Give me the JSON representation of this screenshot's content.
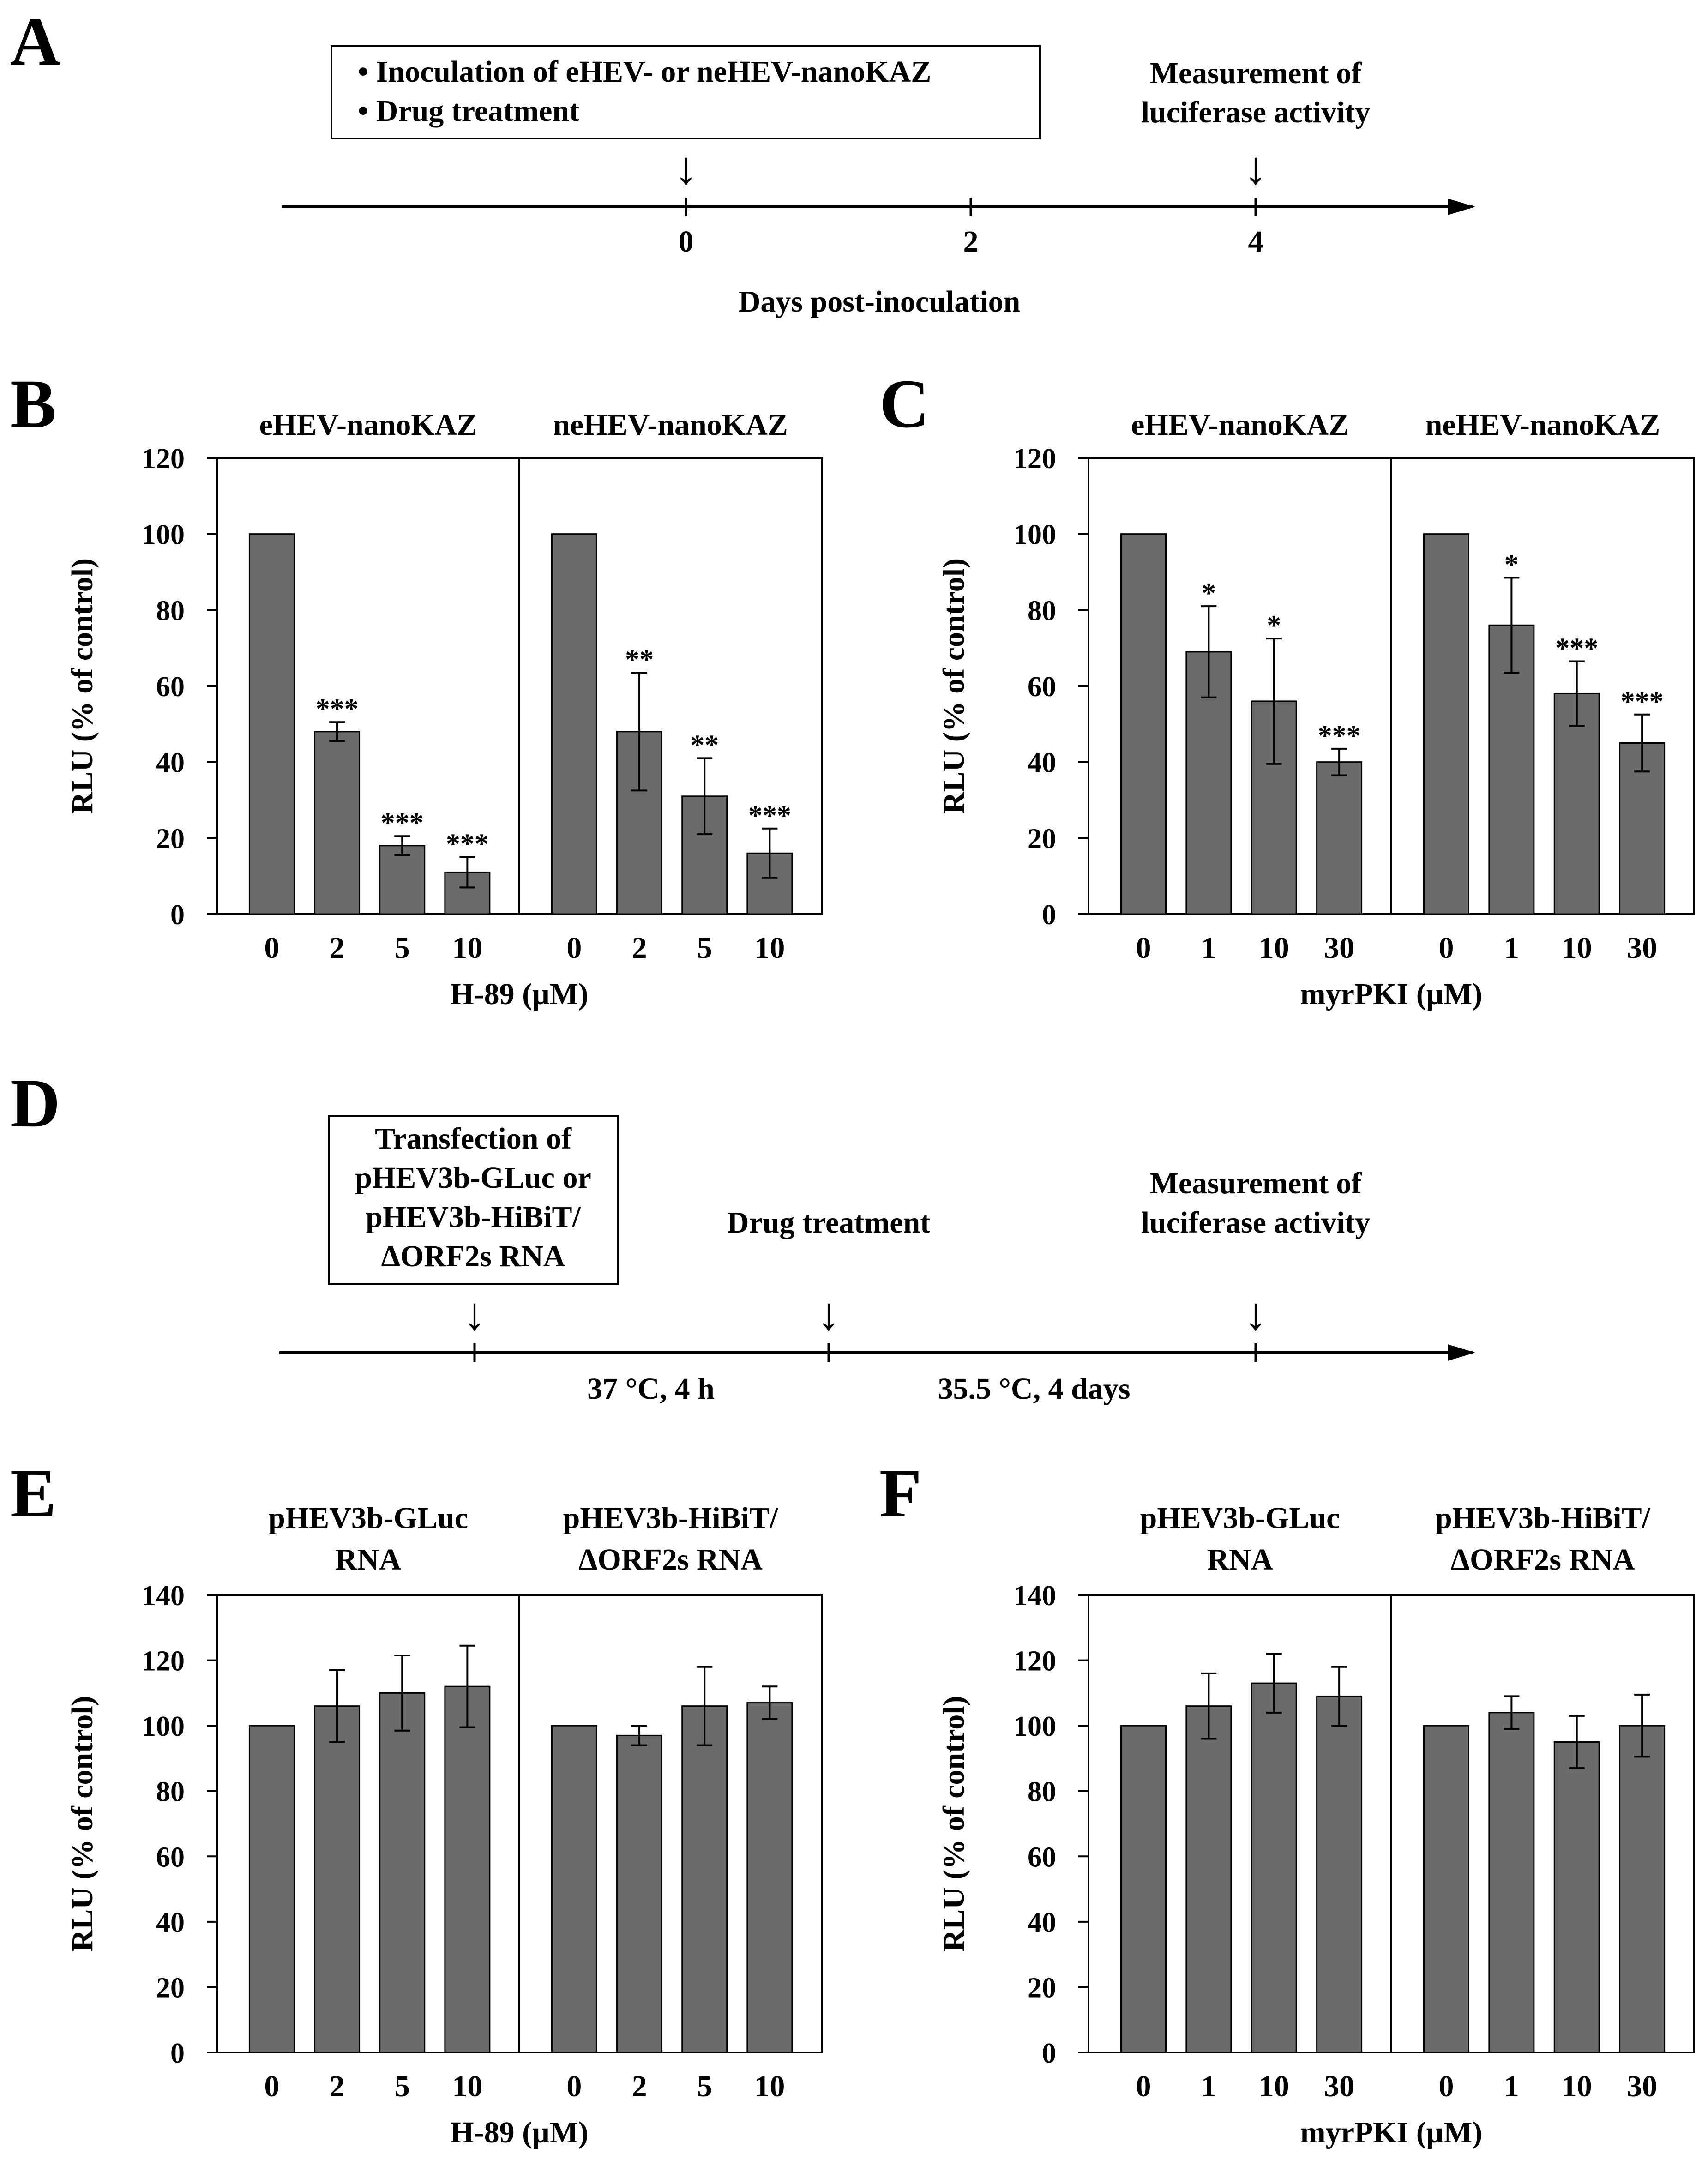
{
  "panel_labels": {
    "A": "A",
    "B": "B",
    "C": "C",
    "D": "D",
    "E": "E",
    "F": "F"
  },
  "colors": {
    "bar": "#6b6b6b",
    "ink": "#000000"
  },
  "timeline_a": {
    "box_line_1": "• Inoculation of eHEV- or neHEV-nanoKAZ",
    "box_line_2": "• Drug treatment",
    "measure_line_1": "Measurement of",
    "measure_line_2": "luciferase activity",
    "tick_labels": [
      "0",
      "2",
      "4"
    ],
    "axis_label": "Days post-inoculation",
    "arrow_glyph": "↓"
  },
  "timeline_d": {
    "box_lines": [
      "Transfection of",
      "pHEV3b-GLuc or",
      "pHEV3b-HiBiT/",
      "ΔORF2s RNA"
    ],
    "drug_label": "Drug treatment",
    "measure_line_1": "Measurement of",
    "measure_line_2": "luciferase activity",
    "segment_1_label": "37 °C, 4 h",
    "segment_2_label": "35.5 °C, 4 days",
    "arrow_glyph": "↓"
  },
  "chart_data": [
    {
      "id": "B",
      "type": "bar",
      "title": "",
      "ylabel": "RLU (% of control)",
      "xlabel": "H-89 (μM)",
      "ylim": [
        0,
        120
      ],
      "yticks": [
        0,
        20,
        40,
        60,
        80,
        100,
        120
      ],
      "groups": [
        {
          "name": "eHEV-nanoKAZ",
          "categories": [
            "0",
            "2",
            "5",
            "10"
          ],
          "values": [
            100,
            48,
            18,
            11
          ],
          "errors": [
            0,
            2.5,
            2.5,
            4
          ],
          "significance": [
            "",
            "***",
            "***",
            "***"
          ]
        },
        {
          "name": "neHEV-nanoKAZ",
          "categories": [
            "0",
            "2",
            "5",
            "10"
          ],
          "values": [
            100,
            48,
            31,
            16
          ],
          "errors": [
            0,
            15.5,
            10,
            6.5
          ],
          "significance": [
            "",
            "**",
            "**",
            "***"
          ]
        }
      ]
    },
    {
      "id": "C",
      "type": "bar",
      "title": "",
      "ylabel": "RLU (% of control)",
      "xlabel": "myrPKI (μM)",
      "ylim": [
        0,
        120
      ],
      "yticks": [
        0,
        20,
        40,
        60,
        80,
        100,
        120
      ],
      "groups": [
        {
          "name": "eHEV-nanoKAZ",
          "categories": [
            "0",
            "1",
            "10",
            "30"
          ],
          "values": [
            100,
            69,
            56,
            40
          ],
          "errors": [
            0,
            12,
            16.5,
            3.5
          ],
          "significance": [
            "",
            "*",
            "*",
            "***"
          ]
        },
        {
          "name": "neHEV-nanoKAZ",
          "categories": [
            "0",
            "1",
            "10",
            "30"
          ],
          "values": [
            100,
            76,
            58,
            45
          ],
          "errors": [
            0,
            12.5,
            8.5,
            7.5
          ],
          "significance": [
            "",
            "*",
            "***",
            "***"
          ]
        }
      ]
    },
    {
      "id": "E",
      "type": "bar",
      "title": "",
      "ylabel": "RLU (% of control)",
      "xlabel": "H-89 (μM)",
      "ylim": [
        0,
        140
      ],
      "yticks": [
        0,
        20,
        40,
        60,
        80,
        100,
        120,
        140
      ],
      "groups": [
        {
          "name_lines": [
            "pHEV3b-GLuc",
            "RNA"
          ],
          "categories": [
            "0",
            "2",
            "5",
            "10"
          ],
          "values": [
            100,
            106,
            110,
            112
          ],
          "errors": [
            0,
            11,
            11.5,
            12.5
          ],
          "significance": [
            "",
            "",
            "",
            ""
          ]
        },
        {
          "name_lines": [
            "pHEV3b-HiBiT/",
            "ΔORF2s RNA"
          ],
          "categories": [
            "0",
            "2",
            "5",
            "10"
          ],
          "values": [
            100,
            97,
            106,
            107
          ],
          "errors": [
            0,
            3,
            12,
            5
          ],
          "significance": [
            "",
            "",
            "",
            ""
          ]
        }
      ]
    },
    {
      "id": "F",
      "type": "bar",
      "title": "",
      "ylabel": "RLU (% of control)",
      "xlabel": "myrPKI (μM)",
      "ylim": [
        0,
        140
      ],
      "yticks": [
        0,
        20,
        40,
        60,
        80,
        100,
        120,
        140
      ],
      "groups": [
        {
          "name_lines": [
            "pHEV3b-GLuc",
            "RNA"
          ],
          "categories": [
            "0",
            "1",
            "10",
            "30"
          ],
          "values": [
            100,
            106,
            113,
            109
          ],
          "errors": [
            0,
            10,
            9,
            9
          ],
          "significance": [
            "",
            "",
            "",
            ""
          ]
        },
        {
          "name_lines": [
            "pHEV3b-HiBiT/",
            "ΔORF2s RNA"
          ],
          "categories": [
            "0",
            "1",
            "10",
            "30"
          ],
          "values": [
            100,
            104,
            95,
            100
          ],
          "errors": [
            0,
            5,
            8,
            9.5
          ],
          "significance": [
            "",
            "",
            "",
            ""
          ]
        }
      ]
    }
  ]
}
